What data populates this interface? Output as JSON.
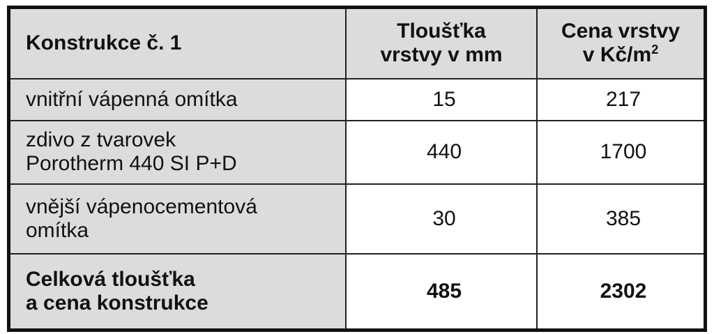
{
  "header": {
    "col1": "Konstrukce č. 1",
    "col2_line1": "Tloušťka",
    "col2_line2": "vrstvy v mm",
    "col3_line1": "Cena vrstvy",
    "col3_line2": "v Kč/m",
    "col3_sup": "2"
  },
  "rows": [
    {
      "name_line1": "vnitřní vápenná omítka",
      "name_line2": "",
      "thickness": "15",
      "price": "217"
    },
    {
      "name_line1": "zdivo z tvarovek",
      "name_line2": "Porotherm 440 SI P+D",
      "thickness": "440",
      "price": "1700"
    },
    {
      "name_line1": "vnější vápenocementová",
      "name_line2": "omítka",
      "thickness": "30",
      "price": "385"
    }
  ],
  "total": {
    "line1": "Celková tloušťka",
    "line2": "a cena konstrukce",
    "thickness": "485",
    "price": "2302"
  },
  "colors": {
    "label_bg": "#dcdcdc",
    "border": "#111111"
  }
}
